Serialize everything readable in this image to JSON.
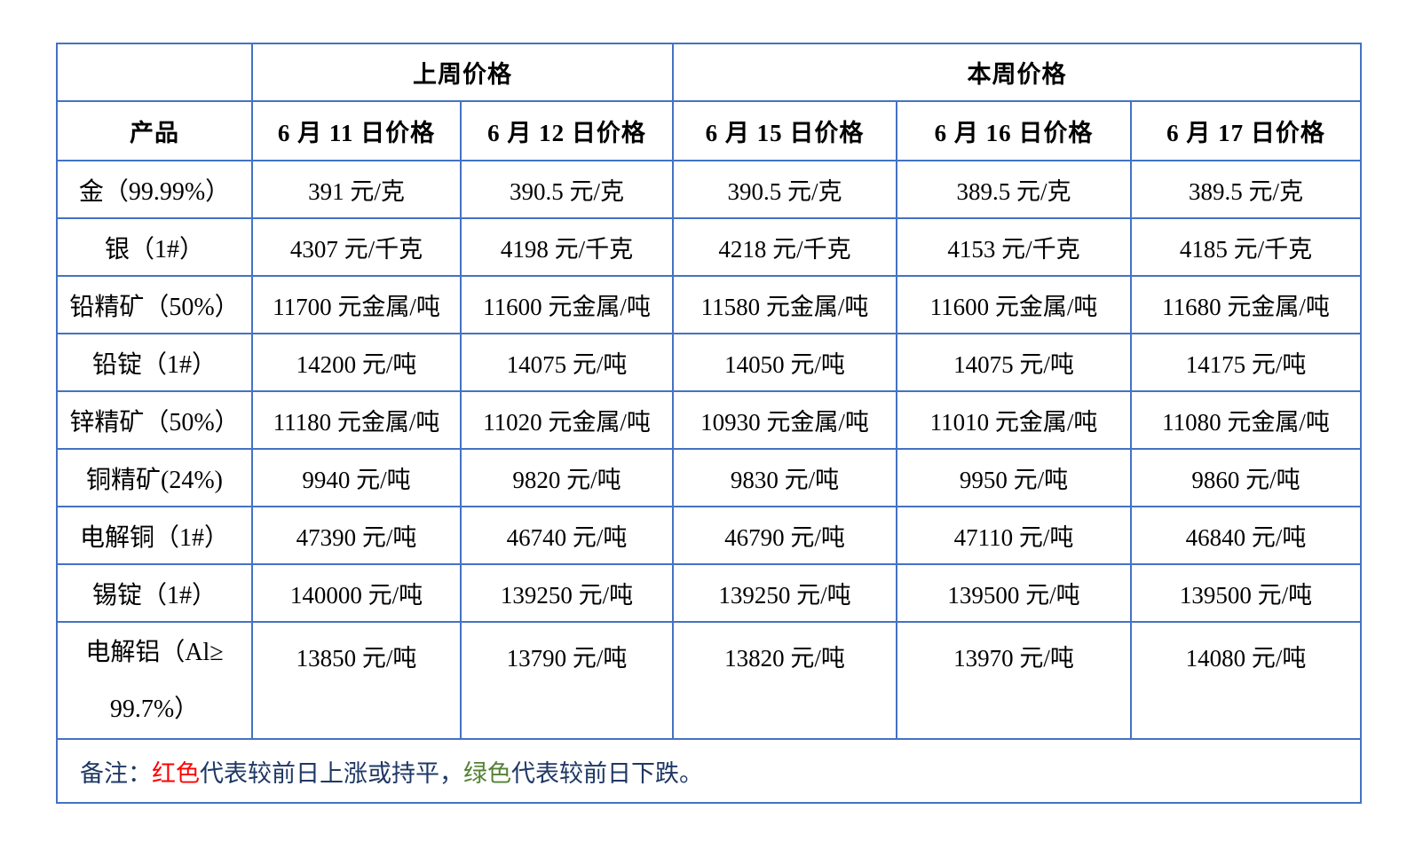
{
  "colors": {
    "red": "#FF0000",
    "green": "#538135",
    "navy": "#1F3864",
    "border_blue": "#4472C4"
  },
  "table": {
    "week_headers": {
      "last_week": "上周价格",
      "this_week": "本周价格"
    },
    "product_header": "产品",
    "date_headers": [
      "6 月 11 日价格",
      "6 月 12 日价格",
      "6 月 15 日价格",
      "6 月 16 日价格",
      "6 月 17 日价格"
    ],
    "rows": [
      {
        "product": "金（99.99%）",
        "values": [
          {
            "text": "391 元/克",
            "color": "red"
          },
          {
            "text": "390.5 元/克",
            "color": "green"
          },
          {
            "text": "390.5 元/克",
            "color": "red"
          },
          {
            "text": "389.5 元/克",
            "color": "green"
          },
          {
            "text": "389.5 元/克",
            "color": "red"
          }
        ]
      },
      {
        "product": "银（1#）",
        "values": [
          {
            "text": "4307 元/千克",
            "color": "red"
          },
          {
            "text": "4198 元/千克",
            "color": "green"
          },
          {
            "text": "4218 元/千克",
            "color": "red"
          },
          {
            "text": "4153 元/千克",
            "color": "green"
          },
          {
            "text": "4185 元/千克",
            "color": "red"
          }
        ]
      },
      {
        "product": "铅精矿（50%）",
        "values": [
          {
            "text": "11700 元金属/吨",
            "color": "green"
          },
          {
            "text": "11600 元金属/吨",
            "color": "green"
          },
          {
            "text": "11580 元金属/吨",
            "color": "green"
          },
          {
            "text": "11600 元金属/吨",
            "color": "red"
          },
          {
            "text": "11680 元金属/吨",
            "color": "red"
          }
        ]
      },
      {
        "product": "铅锭（1#）",
        "values": [
          {
            "text": "14200 元/吨",
            "color": "green"
          },
          {
            "text": "14075 元/吨",
            "color": "green"
          },
          {
            "text": "14050 元/吨",
            "color": "green"
          },
          {
            "text": "14075 元/吨",
            "color": "red"
          },
          {
            "text": "14175 元/吨",
            "color": "red"
          }
        ]
      },
      {
        "product": "锌精矿（50%）",
        "values": [
          {
            "text": "11180 元金属/吨",
            "color": "red"
          },
          {
            "text": "11020 元金属/吨",
            "color": "green"
          },
          {
            "text": "10930 元金属/吨",
            "color": "green"
          },
          {
            "text": "11010 元金属/吨",
            "color": "red"
          },
          {
            "text": "11080 元金属/吨",
            "color": "red"
          }
        ]
      },
      {
        "product": "铜精矿(24%)",
        "values": [
          {
            "text": "9940 元/吨",
            "color": "red"
          },
          {
            "text": "9820 元/吨",
            "color": "green"
          },
          {
            "text": "9830 元/吨",
            "color": "red"
          },
          {
            "text": "9950 元/吨",
            "color": "red"
          },
          {
            "text": "9860 元/吨",
            "color": "green"
          }
        ]
      },
      {
        "product": "电解铜（1#）",
        "values": [
          {
            "text": "47390 元/吨",
            "color": "red"
          },
          {
            "text": "46740 元/吨",
            "color": "green"
          },
          {
            "text": "46790 元/吨",
            "color": "red"
          },
          {
            "text": "47110 元/吨",
            "color": "red"
          },
          {
            "text": "46840 元/吨",
            "color": "green"
          }
        ]
      },
      {
        "product": "锡锭（1#）",
        "values": [
          {
            "text": "140000 元/吨",
            "color": "green"
          },
          {
            "text": "139250 元/吨",
            "color": "green"
          },
          {
            "text": "139250 元/吨",
            "color": "red"
          },
          {
            "text": "139500 元/吨",
            "color": "red"
          },
          {
            "text": "139500 元/吨",
            "color": "red"
          }
        ]
      }
    ],
    "tall_row": {
      "product_line1": "电解铝（Al≥",
      "product_line2": "99.7%）",
      "values": [
        {
          "text": "13850 元/吨",
          "color": "red"
        },
        {
          "text": "13790 元/吨",
          "color": "green"
        },
        {
          "text": "13820 元/吨",
          "color": "red"
        },
        {
          "text": "13970 元/吨",
          "color": "red"
        },
        {
          "text": "14080 元/吨",
          "color": "red"
        }
      ]
    },
    "note": {
      "parts": [
        {
          "text": "备注：",
          "color": "navy"
        },
        {
          "text": "红色",
          "color": "red"
        },
        {
          "text": "代表较前日上涨或持平，",
          "color": "navy"
        },
        {
          "text": "绿色",
          "color": "green"
        },
        {
          "text": "代表较前日下跌。",
          "color": "navy"
        }
      ]
    }
  }
}
